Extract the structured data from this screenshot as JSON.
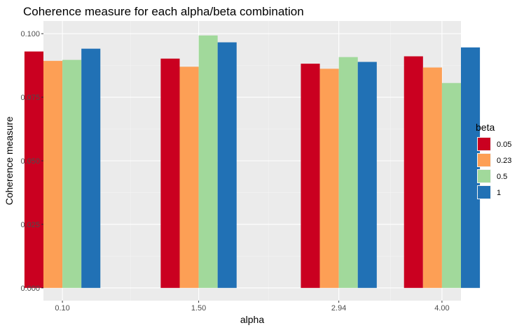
{
  "chart_data": {
    "type": "bar",
    "title": "Coherence measure for each alpha/beta combination",
    "xlabel": "alpha",
    "ylabel": "Coherence measure",
    "x": [
      0.1,
      1.5,
      2.94,
      4.0
    ],
    "x_tick_labels": [
      "0.10",
      "1.50",
      "2.94",
      "4.00"
    ],
    "xlim": [
      -0.095,
      4.195
    ],
    "y_ticks": [
      "0.000",
      "0.025",
      "0.050",
      "0.075",
      "0.100"
    ],
    "y_tick_values": [
      0,
      0.025,
      0.05,
      0.075,
      0.1
    ],
    "ylim": [
      -0.005,
      0.105
    ],
    "dodge_width": 0.78,
    "grid": true,
    "legend_title": "beta",
    "legend_position": "right",
    "series": [
      {
        "name": "0.05",
        "color": "#ca0020",
        "values": [
          0.093,
          0.0902,
          0.0882,
          0.0911
        ]
      },
      {
        "name": "0.23",
        "color": "#fd9f55",
        "values": [
          0.0893,
          0.087,
          0.0862,
          0.0867
        ]
      },
      {
        "name": "0.5",
        "color": "#a1d99b",
        "values": [
          0.0897,
          0.0993,
          0.0908,
          0.0806
        ]
      },
      {
        "name": "1",
        "color": "#2171b5",
        "values": [
          0.0941,
          0.0966,
          0.0889,
          0.0946
        ]
      }
    ]
  }
}
